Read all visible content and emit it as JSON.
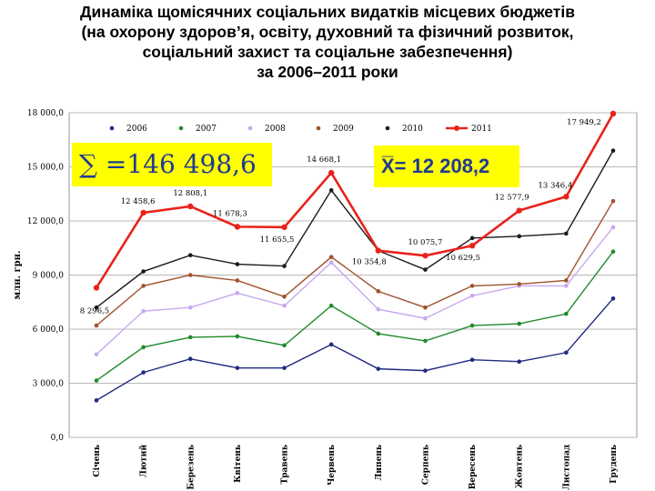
{
  "title_lines": [
    "Динаміка щомісячних соціальних видатків місцевих бюджетів",
    "(на охорону здоров’я, освіту, духовний та фізичний розвиток,",
    "соціальний захист та соціальне забезпечення)",
    "за 2006–2011 роки"
  ],
  "callouts": {
    "sum": "∑ =146 498,6",
    "avg": "X̅= 12 208,2"
  },
  "chart_data": {
    "type": "line",
    "title": "",
    "xlabel": "",
    "ylabel": "млн. грн.",
    "ylim": [
      0,
      18000
    ],
    "yticks": [
      "0,0",
      "3 000,0",
      "6 000,0",
      "9 000,0",
      "12 000,0",
      "15 000,0",
      "18 000,0"
    ],
    "ytick_values": [
      0,
      3000,
      6000,
      9000,
      12000,
      15000,
      18000
    ],
    "grid": true,
    "legend_position": "top",
    "categories": [
      "Січень",
      "Лютий",
      "Березень",
      "Квітень",
      "Травень",
      "Червень",
      "Липень",
      "Серпень",
      "Вересень",
      "Жовтень",
      "Листопад",
      "Грудень"
    ],
    "series": [
      {
        "name": "2006",
        "color": "#1f2a80",
        "values": [
          2050,
          3600,
          4350,
          3850,
          3850,
          5150,
          3800,
          3700,
          4300,
          4200,
          4700,
          7700
        ]
      },
      {
        "name": "2007",
        "color": "#1f8a2a",
        "values": [
          3150,
          5000,
          5550,
          5600,
          5100,
          7300,
          5750,
          5350,
          6200,
          6300,
          6850,
          10300
        ]
      },
      {
        "name": "2008",
        "color": "#c8a8f0",
        "values": [
          4600,
          7000,
          7200,
          8000,
          7300,
          9700,
          7100,
          6600,
          7850,
          8400,
          8400,
          11650
        ]
      },
      {
        "name": "2009",
        "color": "#a0522d",
        "values": [
          6200,
          8400,
          9000,
          8700,
          7800,
          10000,
          8100,
          7200,
          8400,
          8500,
          8700,
          13100
        ]
      },
      {
        "name": "2010",
        "color": "#1a1a1a",
        "values": [
          7200,
          9200,
          10100,
          9600,
          9500,
          13700,
          10350,
          9300,
          11050,
          11150,
          11300,
          15900
        ]
      },
      {
        "name": "2011",
        "color": "#e8231a",
        "values": [
          8296.5,
          12458.6,
          12808.1,
          11678.3,
          11655.5,
          14668.1,
          10354.8,
          10075.7,
          10629.5,
          12577.9,
          13346.4,
          17949.2
        ]
      }
    ],
    "data_labels": [
      "8 296,5",
      "12 458,6",
      "12 808,1",
      "11 678,3",
      "11 655,5",
      "14 668,1",
      "10 354,8",
      "10 075,7",
      "10 629,5",
      "12 577,9",
      "13 346,4",
      "17 949,2"
    ]
  }
}
